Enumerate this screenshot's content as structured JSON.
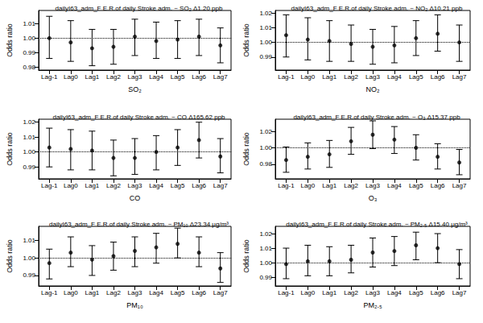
{
  "chart_data": [
    {
      "type": "scatter",
      "title": "dailyI63_adm_F E.R.of daily Stroke adm. ~ SO₂ Δ1.20 ppb",
      "x_label": "SO₂",
      "y_label": "Odds ratio",
      "categories": [
        "Lag-1",
        "Lag0",
        "Lag1",
        "Lag2",
        "Lag3",
        "Lag4",
        "Lag5",
        "Lag6",
        "Lag7"
      ],
      "values": [
        1.0,
        0.997,
        0.993,
        0.994,
        1.001,
        0.998,
        0.999,
        1.001,
        0.995
      ],
      "error_low": [
        0.986,
        0.984,
        0.981,
        0.982,
        0.988,
        0.986,
        0.986,
        0.988,
        0.983
      ],
      "error_high": [
        1.015,
        1.012,
        1.006,
        1.006,
        1.013,
        1.011,
        1.012,
        1.013,
        1.007
      ],
      "reference_line": 1,
      "color": "#000000",
      "marker": "circle",
      "line_style": "dotted",
      "ylim": [
        0.978,
        1.019
      ],
      "yticks": [
        0.98,
        0.99,
        {
          "value": 1,
          "label": "1.00"
        },
        1.01
      ],
      "grid": false
    },
    {
      "type": "scatter",
      "title": "dailyI63_adm_F E.R.of daily Stroke adm. ~ NO₂ Δ10.21 ppb",
      "x_label": "NO₂",
      "y_label": "Odds ratio",
      "categories": [
        "Lag-1",
        "Lag0",
        "Lag1",
        "Lag2",
        "Lag3",
        "Lag4",
        "Lag5",
        "Lag6",
        "Lag7"
      ],
      "values": [
        1.005,
        1.002,
        1.001,
        0.999,
        0.997,
        0.998,
        1.003,
        1.006,
        1.0
      ],
      "error_low": [
        0.99,
        0.988,
        0.987,
        0.987,
        0.985,
        0.986,
        0.991,
        0.994,
        0.987
      ],
      "error_high": [
        1.019,
        1.017,
        1.015,
        1.012,
        1.009,
        1.011,
        1.015,
        1.019,
        1.012
      ],
      "reference_line": 1,
      "color": "#000000",
      "marker": "circle",
      "line_style": "dotted",
      "ylim": [
        0.981,
        1.022
      ],
      "yticks": [
        0.99,
        {
          "value": 1,
          "label": "1.00"
        },
        1.01,
        1.02
      ],
      "grid": false
    },
    {
      "type": "scatter",
      "title": "dailyI63_adm_F E.R.of daily Stroke adm. ~ CO Δ165.62 ppb",
      "x_label": "CO",
      "y_label": "Odds ratio",
      "categories": [
        "Lag-1",
        "Lag0",
        "Lag1",
        "Lag2",
        "Lag3",
        "Lag4",
        "Lag5",
        "Lag6",
        "Lag7"
      ],
      "values": [
        1.003,
        1.002,
        1.001,
        0.996,
        0.996,
        1.0,
        1.003,
        1.008,
        0.997
      ],
      "error_low": [
        0.99,
        0.988,
        0.988,
        0.984,
        0.985,
        0.988,
        0.991,
        0.996,
        0.986
      ],
      "error_high": [
        1.016,
        1.015,
        1.014,
        1.008,
        1.009,
        1.011,
        1.015,
        1.02,
        1.009
      ],
      "reference_line": 1,
      "color": "#000000",
      "marker": "circle",
      "line_style": "dotted",
      "ylim": [
        0.982,
        1.022
      ],
      "yticks": [
        0.99,
        {
          "value": 1,
          "label": "1.00"
        },
        1.01,
        1.02
      ],
      "grid": false
    },
    {
      "type": "scatter",
      "title": "dailyI63_adm_F E.R.of daily Stroke adm. ~ O₃ Δ15.37 ppb",
      "x_label": "O₃",
      "y_label": "Odds ratio",
      "categories": [
        "Lag-1",
        "Lag0",
        "Lag1",
        "Lag2",
        "Lag3",
        "Lag4",
        "Lag5",
        "Lag6",
        "Lag7"
      ],
      "values": [
        0.985,
        0.989,
        0.992,
        1.008,
        1.016,
        1.01,
        1.0,
        0.989,
        0.982
      ],
      "error_low": [
        0.97,
        0.974,
        0.976,
        0.992,
        0.999,
        0.993,
        0.985,
        0.974,
        0.967
      ],
      "error_high": [
        1.001,
        1.006,
        1.009,
        1.025,
        1.033,
        1.026,
        1.016,
        1.005,
        0.998
      ],
      "reference_line": 1,
      "color": "#000000",
      "marker": "circle",
      "line_style": "dotted",
      "ylim": [
        0.962,
        1.035
      ],
      "yticks": [
        0.98,
        {
          "value": 1,
          "label": "1.00"
        },
        1.02
      ],
      "grid": false
    },
    {
      "type": "scatter",
      "title": "dailyI63_adm_F E.R.of daily Stroke adm. ~ PM₁₀ Δ23.34 μg/m³",
      "x_label": "PM₁₀",
      "y_label": "Odds ratio",
      "categories": [
        "Lag-1",
        "Lag0",
        "Lag1",
        "Lag2",
        "Lag3",
        "Lag4",
        "Lag5",
        "Lag6",
        "Lag7"
      ],
      "values": [
        0.997,
        1.003,
        0.999,
        1.001,
        1.004,
        1.006,
        1.008,
        1.003,
        0.994
      ],
      "error_low": [
        0.988,
        0.995,
        0.99,
        0.993,
        0.995,
        0.997,
        1.0,
        0.995,
        0.986
      ],
      "error_high": [
        1.005,
        1.012,
        1.007,
        1.009,
        1.012,
        1.014,
        1.017,
        1.012,
        1.003
      ],
      "reference_line": 1,
      "color": "#000000",
      "marker": "circle",
      "line_style": "dotted",
      "ylim": [
        0.984,
        1.018
      ],
      "yticks": [
        0.99,
        {
          "value": 1,
          "label": "1.00"
        },
        1.01
      ],
      "grid": false
    },
    {
      "type": "scatter",
      "title": "dailyI63_adm_F E.R.of daily Stroke adm. ~ PM₂.₅ Δ15.40 μg/m³",
      "x_label": "PM₂.₅",
      "y_label": "Odds ratio",
      "categories": [
        "Lag-1",
        "Lag0",
        "Lag1",
        "Lag2",
        "Lag3",
        "Lag4",
        "Lag5",
        "Lag6",
        "Lag7"
      ],
      "values": [
        0.999,
        1.001,
        1.001,
        1.002,
        1.007,
        1.008,
        1.012,
        1.01,
        0.999
      ],
      "error_low": [
        0.989,
        0.991,
        0.991,
        0.993,
        0.997,
        0.998,
        1.002,
        1.0,
        0.989
      ],
      "error_high": [
        1.01,
        1.012,
        1.011,
        1.012,
        1.017,
        1.018,
        1.021,
        1.02,
        1.009
      ],
      "reference_line": 1,
      "color": "#000000",
      "marker": "circle",
      "line_style": "dotted",
      "ylim": [
        0.984,
        1.025
      ],
      "yticks": [
        0.99,
        {
          "value": 1,
          "label": "1.00"
        },
        1.01,
        1.02
      ],
      "grid": false
    }
  ]
}
